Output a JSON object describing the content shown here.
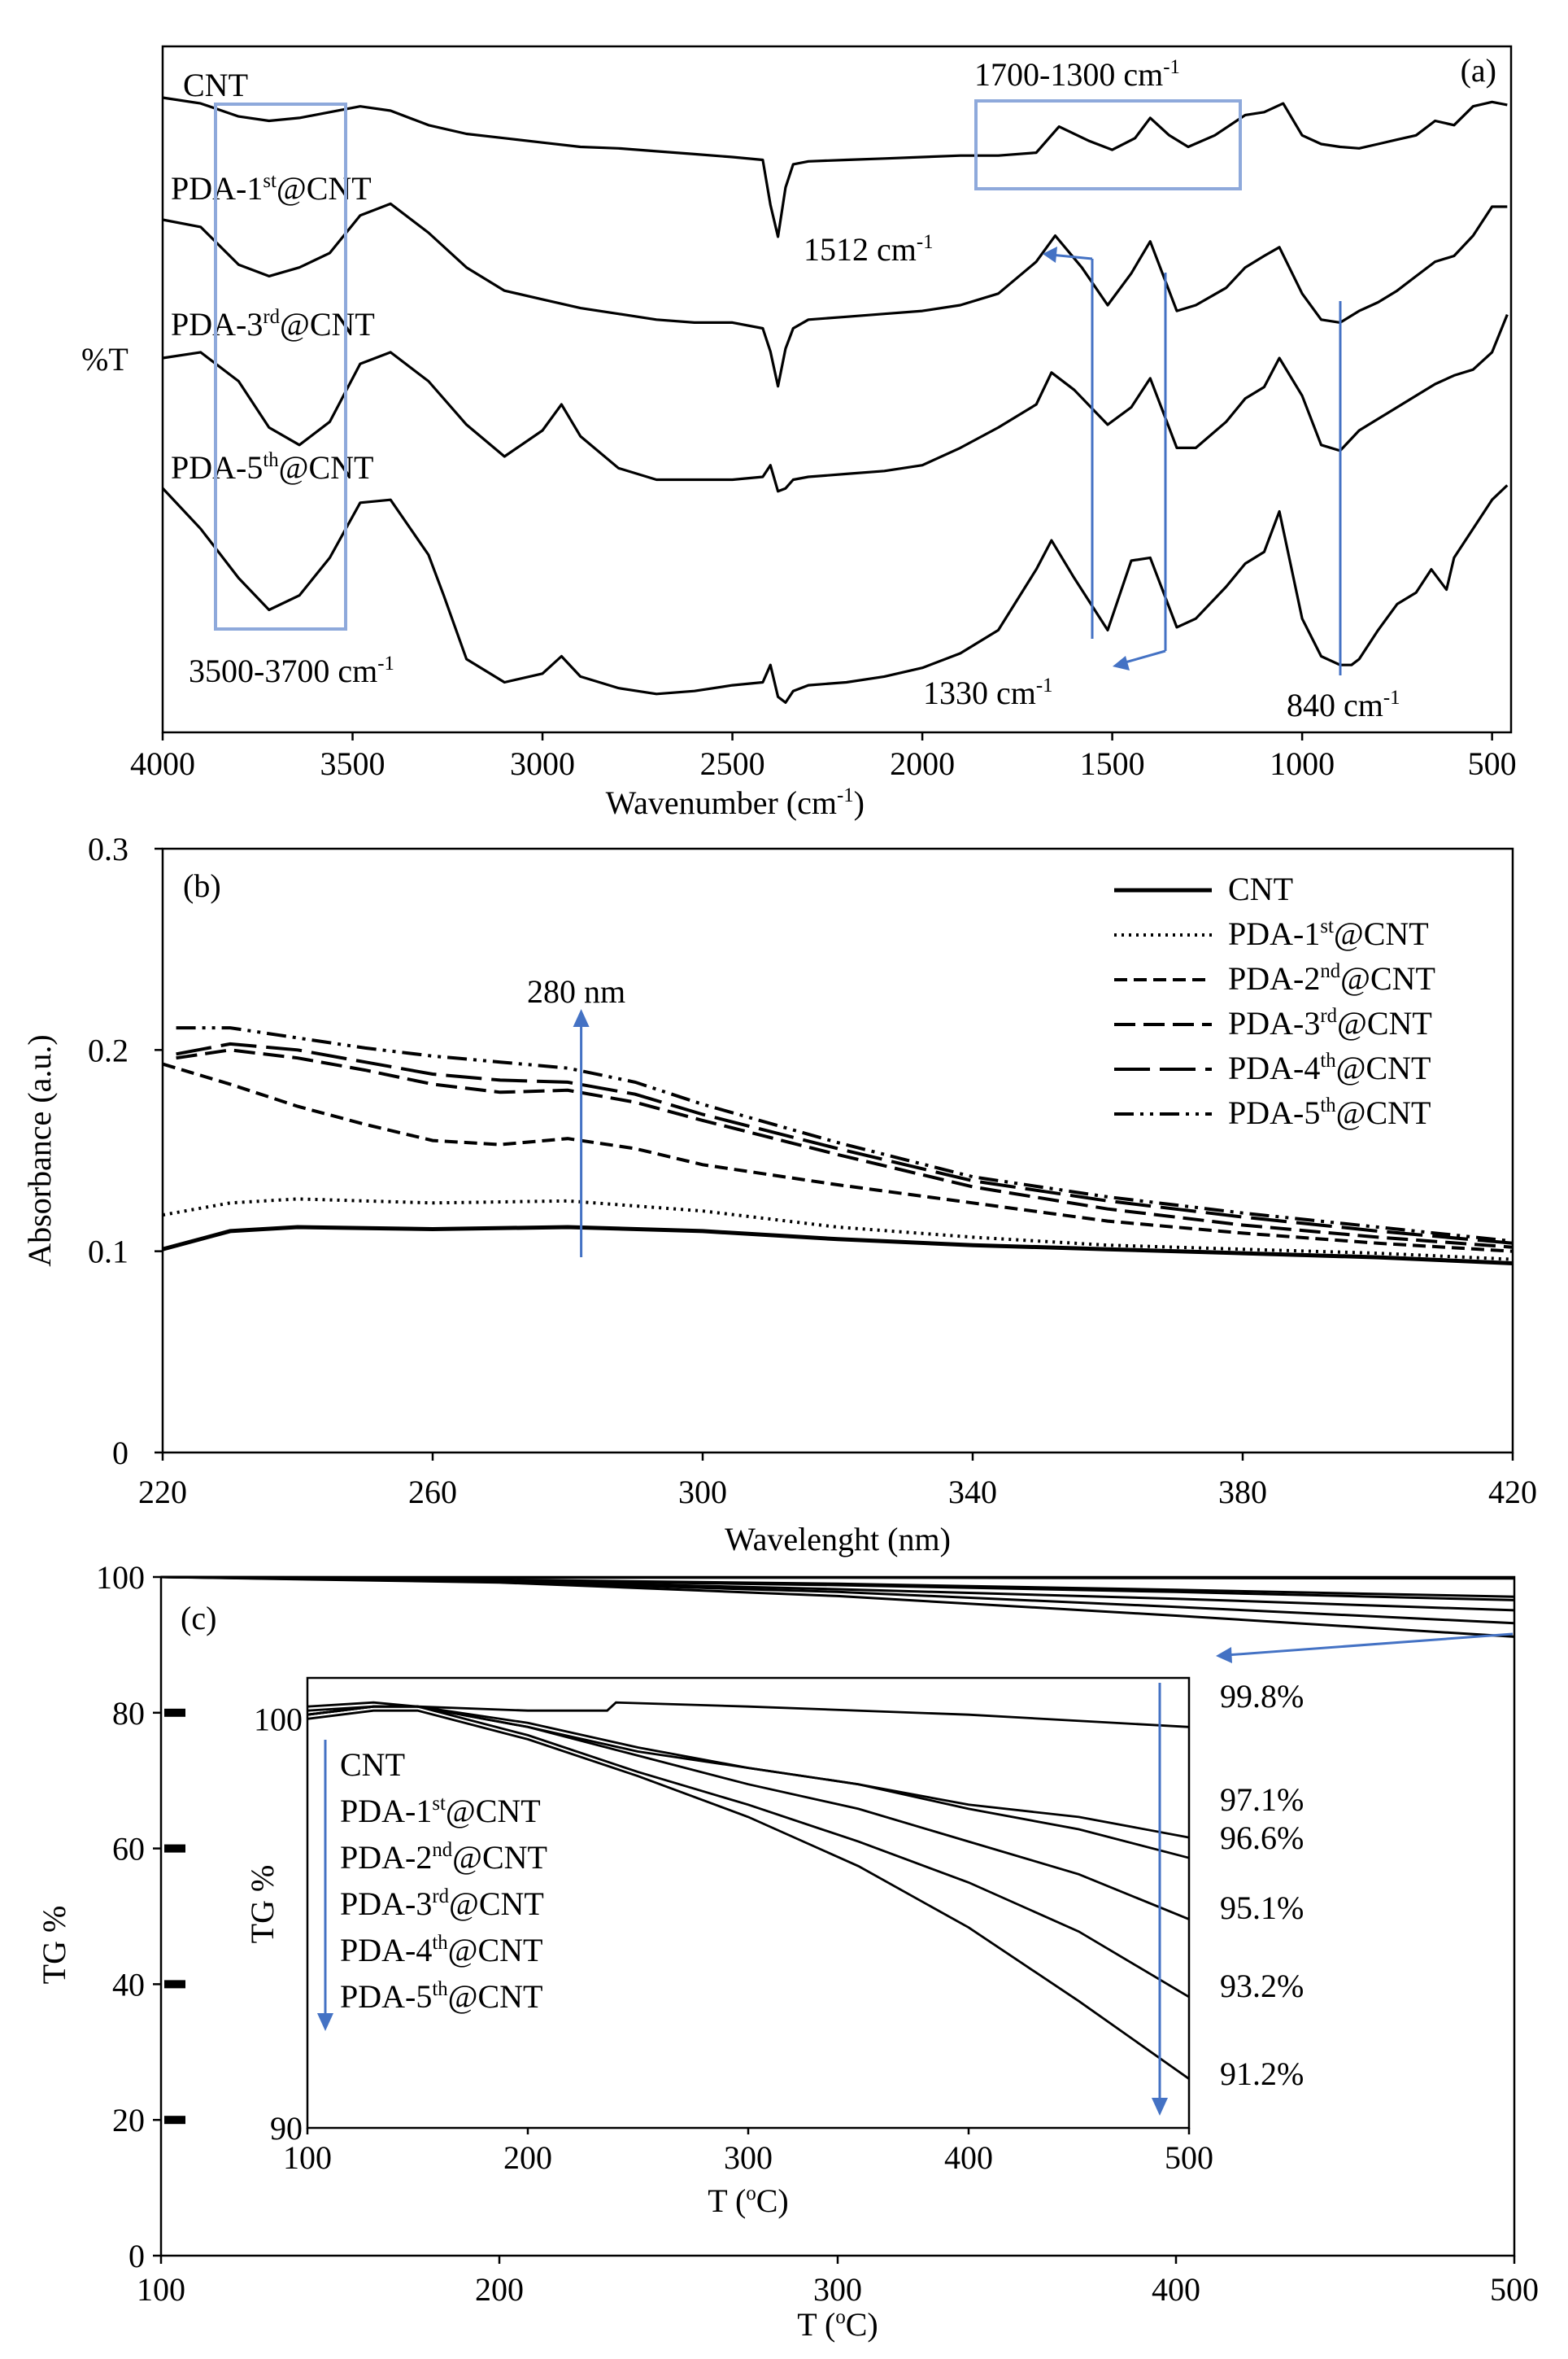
{
  "chart_data": [
    {
      "panel": "a",
      "type": "line",
      "title": "(a)",
      "xlabel": "Wavenumber (cm-1)",
      "ylabel": "%T",
      "xlim": [
        4000,
        450
      ],
      "x_reversed": true,
      "xticks": [
        4000,
        3500,
        3000,
        2500,
        2000,
        1500,
        1000,
        500
      ],
      "series": [
        {
          "name": "CNT",
          "label_base": "CNT",
          "label_sup": "",
          "label_rest": "",
          "x": [
            4000,
            3900,
            3800,
            3720,
            3640,
            3560,
            3480,
            3400,
            3300,
            3200,
            3100,
            3000,
            2900,
            2800,
            2700,
            2600,
            2500,
            2420,
            2400,
            2380,
            2360,
            2340,
            2300,
            2200,
            2100,
            2000,
            1900,
            1800,
            1700,
            1640,
            1560,
            1500,
            1440,
            1400,
            1350,
            1300,
            1230,
            1150,
            1100,
            1050,
            1000,
            950,
            900,
            850,
            800,
            750,
            700,
            650,
            600,
            550,
            500,
            460
          ],
          "y": [
            66,
            70,
            79,
            82,
            80,
            76,
            72,
            75,
            85,
            91,
            94,
            97,
            100,
            101,
            103,
            105,
            107,
            109,
            140,
            162,
            128,
            112,
            110,
            109,
            108,
            107,
            106,
            106,
            104,
            86,
            96,
            102,
            94,
            80,
            92,
            100,
            92,
            78,
            76,
            70,
            92,
            98,
            100,
            101,
            98,
            95,
            92,
            82,
            85,
            72,
            69,
            71
          ]
        },
        {
          "name": "PDA-1st@CNT",
          "label_base": "PDA-1",
          "label_sup": "st",
          "label_rest": "@CNT",
          "x": [
            4000,
            3900,
            3800,
            3720,
            3640,
            3560,
            3480,
            3400,
            3300,
            3200,
            3100,
            3000,
            2900,
            2800,
            2700,
            2600,
            2500,
            2420,
            2400,
            2380,
            2360,
            2340,
            2300,
            2200,
            2100,
            2000,
            1900,
            1800,
            1700,
            1650,
            1580,
            1512,
            1450,
            1400,
            1330,
            1280,
            1200,
            1150,
            1100,
            1060,
            1000,
            950,
            900,
            850,
            800,
            750,
            700,
            650,
            600,
            550,
            500,
            460
          ],
          "y": [
            147,
            152,
            178,
            186,
            180,
            170,
            144,
            136,
            156,
            180,
            196,
            202,
            208,
            212,
            216,
            218,
            218,
            222,
            238,
            262,
            236,
            222,
            216,
            214,
            212,
            210,
            206,
            198,
            176,
            158,
            180,
            206,
            184,
            162,
            210,
            206,
            194,
            180,
            172,
            166,
            198,
            216,
            218,
            210,
            204,
            196,
            186,
            176,
            172,
            158,
            138,
            138
          ]
        },
        {
          "name": "PDA-3rd@CNT",
          "label_base": "PDA-3",
          "label_sup": "rd",
          "label_rest": "@CNT",
          "x": [
            4000,
            3900,
            3800,
            3720,
            3640,
            3560,
            3480,
            3400,
            3300,
            3200,
            3100,
            3000,
            2950,
            2900,
            2800,
            2700,
            2600,
            2500,
            2420,
            2400,
            2380,
            2360,
            2340,
            2300,
            2200,
            2100,
            2000,
            1900,
            1800,
            1700,
            1660,
            1600,
            1512,
            1450,
            1400,
            1330,
            1280,
            1200,
            1150,
            1100,
            1060,
            1000,
            950,
            900,
            850,
            800,
            750,
            700,
            650,
            600,
            550,
            500,
            460
          ],
          "y": [
            236,
            232,
            252,
            284,
            296,
            280,
            240,
            232,
            252,
            282,
            304,
            286,
            268,
            290,
            312,
            320,
            320,
            320,
            318,
            310,
            328,
            326,
            320,
            318,
            316,
            314,
            310,
            298,
            284,
            268,
            246,
            258,
            282,
            270,
            250,
            298,
            298,
            280,
            264,
            256,
            236,
            262,
            296,
            300,
            286,
            278,
            270,
            262,
            254,
            248,
            244,
            232,
            206
          ]
        },
        {
          "name": "PDA-5th@CNT",
          "label_base": "PDA-5",
          "label_sup": "th",
          "label_rest": "@CNT",
          "x": [
            4000,
            3900,
            3800,
            3720,
            3640,
            3560,
            3480,
            3400,
            3300,
            3260,
            3200,
            3100,
            3000,
            2950,
            2900,
            2800,
            2700,
            2600,
            2500,
            2420,
            2400,
            2380,
            2360,
            2340,
            2300,
            2200,
            2100,
            2000,
            1900,
            1800,
            1700,
            1660,
            1600,
            1512,
            1450,
            1400,
            1330,
            1280,
            1200,
            1150,
            1100,
            1060,
            1000,
            950,
            900,
            870,
            850,
            800,
            750,
            700,
            660,
            620,
            600,
            550,
            500,
            460
          ],
          "y": [
            322,
            350,
            384,
            406,
            396,
            370,
            332,
            330,
            368,
            396,
            440,
            456,
            450,
            438,
            452,
            460,
            464,
            462,
            458,
            456,
            444,
            466,
            470,
            462,
            458,
            456,
            452,
            446,
            436,
            420,
            378,
            358,
            384,
            420,
            372,
            370,
            418,
            412,
            390,
            374,
            366,
            338,
            412,
            438,
            444,
            444,
            440,
            420,
            402,
            394,
            378,
            392,
            370,
            350,
            330,
            320
          ]
        }
      ]
    },
    {
      "panel": "b",
      "type": "line",
      "title": "(b)",
      "xlabel": "Wavelenght (nm)",
      "ylabel": "Absorbance (a.u.)",
      "xlim": [
        220,
        420
      ],
      "ylim": [
        0,
        0.3
      ],
      "xticks": [
        220,
        260,
        300,
        340,
        380,
        420
      ],
      "yticks": [
        0,
        0.1,
        0.2,
        0.3
      ],
      "series": [
        {
          "name": "CNT",
          "label_base": "CNT",
          "label_sup": "",
          "label_rest": "",
          "dash": "solid",
          "x": [
            220,
            230,
            240,
            260,
            280,
            300,
            320,
            340,
            360,
            380,
            400,
            420
          ],
          "y": [
            0.101,
            0.11,
            0.112,
            0.111,
            0.112,
            0.11,
            0.106,
            0.103,
            0.101,
            0.099,
            0.097,
            0.094
          ]
        },
        {
          "name": "PDA-1st@CNT",
          "label_base": "PDA-1",
          "label_sup": "st",
          "label_rest": "@CNT",
          "dash": "dot",
          "x": [
            220,
            230,
            240,
            260,
            280,
            300,
            320,
            340,
            360,
            380,
            400,
            420
          ],
          "y": [
            0.118,
            0.124,
            0.126,
            0.124,
            0.125,
            0.12,
            0.112,
            0.107,
            0.103,
            0.101,
            0.099,
            0.096
          ]
        },
        {
          "name": "PDA-2nd@CNT",
          "label_base": "PDA-2",
          "label_sup": "nd",
          "label_rest": "@CNT",
          "dash": "dash",
          "x": [
            220,
            230,
            240,
            250,
            260,
            270,
            280,
            290,
            300,
            320,
            340,
            360,
            380,
            400,
            420
          ],
          "y": [
            0.193,
            0.183,
            0.172,
            0.163,
            0.155,
            0.153,
            0.156,
            0.151,
            0.143,
            0.133,
            0.124,
            0.115,
            0.109,
            0.104,
            0.1
          ]
        },
        {
          "name": "PDA-3rd@CNT",
          "label_base": "PDA-3",
          "label_sup": "rd",
          "label_rest": "@CNT",
          "dash": "longdash",
          "x": [
            222,
            230,
            240,
            250,
            260,
            270,
            280,
            290,
            300,
            320,
            340,
            360,
            380,
            400,
            420
          ],
          "y": [
            0.196,
            0.2,
            0.196,
            0.19,
            0.183,
            0.179,
            0.18,
            0.174,
            0.165,
            0.148,
            0.132,
            0.121,
            0.113,
            0.107,
            0.102
          ]
        },
        {
          "name": "PDA-4th@CNT",
          "label_base": "PDA-4",
          "label_sup": "th",
          "label_rest": "@CNT",
          "dash": "xlongdash",
          "x": [
            222,
            230,
            240,
            250,
            260,
            270,
            280,
            290,
            300,
            320,
            340,
            360,
            380,
            400,
            420
          ],
          "y": [
            0.198,
            0.203,
            0.2,
            0.194,
            0.188,
            0.185,
            0.184,
            0.178,
            0.168,
            0.151,
            0.135,
            0.125,
            0.117,
            0.11,
            0.104
          ]
        },
        {
          "name": "PDA-5th@CNT",
          "label_base": "PDA-5",
          "label_sup": "th",
          "label_rest": "@CNT",
          "dash": "dashdot",
          "x": [
            222,
            230,
            240,
            250,
            260,
            270,
            280,
            290,
            300,
            320,
            340,
            360,
            380,
            400,
            420
          ],
          "y": [
            0.211,
            0.211,
            0.206,
            0.201,
            0.197,
            0.194,
            0.191,
            0.184,
            0.173,
            0.154,
            0.137,
            0.127,
            0.119,
            0.112,
            0.105
          ]
        }
      ]
    },
    {
      "panel": "c",
      "type": "line",
      "title": "(c)",
      "xlabel": "T (oC)",
      "ylabel": "TG %",
      "xlim": [
        100,
        500
      ],
      "ylim": [
        0,
        100
      ],
      "xticks": [
        100,
        200,
        300,
        400,
        500
      ],
      "yticks": [
        0,
        20,
        40,
        60,
        80,
        100
      ],
      "series": [
        {
          "name": "CNT",
          "x": [
            100,
            200,
            300,
            400,
            500
          ],
          "y": [
            100,
            99.9,
            99.9,
            99.85,
            99.8
          ]
        },
        {
          "name": "PDA-1st@CNT",
          "x": [
            100,
            200,
            300,
            400,
            500
          ],
          "y": [
            100,
            99.6,
            99.0,
            98.1,
            97.1
          ]
        },
        {
          "name": "PDA-2nd@CNT",
          "x": [
            100,
            200,
            300,
            400,
            500
          ],
          "y": [
            100,
            99.5,
            98.8,
            97.8,
            96.6
          ]
        },
        {
          "name": "PDA-3rd@CNT",
          "x": [
            100,
            200,
            300,
            400,
            500
          ],
          "y": [
            100,
            99.4,
            98.2,
            96.8,
            95.1
          ]
        },
        {
          "name": "PDA-4th@CNT",
          "x": [
            100,
            200,
            300,
            400,
            500
          ],
          "y": [
            100,
            99.3,
            97.8,
            95.6,
            93.2
          ]
        },
        {
          "name": "PDA-5th@CNT",
          "x": [
            100,
            200,
            300,
            400,
            500
          ],
          "y": [
            100,
            99.2,
            97.2,
            94.3,
            91.2
          ]
        }
      ]
    },
    {
      "panel": "c-inset",
      "type": "line",
      "xlabel": "T (oC)",
      "ylabel": "TG %",
      "xlim": [
        100,
        500
      ],
      "ylim": [
        90,
        101
      ],
      "xticks": [
        100,
        200,
        300,
        400,
        500
      ],
      "yticks": [
        90,
        100
      ],
      "series": [
        {
          "name": "CNT",
          "label_base": "CNT",
          "label_sup": "",
          "label_rest": "",
          "x": [
            100,
            130,
            150,
            200,
            236,
            240,
            300,
            400,
            500
          ],
          "y": [
            100.2,
            100.3,
            100.3,
            100.2,
            100.2,
            100.4,
            100.3,
            100.1,
            99.8
          ]
        },
        {
          "name": "PDA-1st@CNT",
          "label_base": "PDA-1",
          "label_sup": "st",
          "label_rest": "@CNT",
          "x": [
            100,
            130,
            150,
            200,
            250,
            300,
            350,
            400,
            450,
            500
          ],
          "y": [
            100.3,
            100.4,
            100.3,
            99.9,
            99.3,
            98.8,
            98.4,
            97.9,
            97.6,
            97.1
          ]
        },
        {
          "name": "PDA-2nd@CNT",
          "label_base": "PDA-2",
          "label_sup": "nd",
          "label_rest": "@CNT",
          "x": [
            100,
            130,
            150,
            200,
            250,
            300,
            350,
            400,
            450,
            500
          ],
          "y": [
            100.1,
            100.3,
            100.3,
            99.8,
            99.2,
            98.8,
            98.4,
            97.8,
            97.3,
            96.6
          ]
        },
        {
          "name": "PDA-3rd@CNT",
          "label_base": "PDA-3",
          "label_sup": "rd",
          "label_rest": "@CNT",
          "x": [
            100,
            130,
            150,
            200,
            250,
            300,
            350,
            400,
            450,
            500
          ],
          "y": [
            100.1,
            100.3,
            100.3,
            99.8,
            99.1,
            98.4,
            97.8,
            97.0,
            96.2,
            95.1
          ]
        },
        {
          "name": "PDA-4th@CNT",
          "label_base": "PDA-4",
          "label_sup": "th",
          "label_rest": "@CNT",
          "x": [
            100,
            130,
            150,
            200,
            250,
            300,
            350,
            400,
            450,
            500
          ],
          "y": [
            100.1,
            100.3,
            100.3,
            99.6,
            98.7,
            97.9,
            97.0,
            96.0,
            94.8,
            93.2
          ]
        },
        {
          "name": "PDA-5th@CNT",
          "label_base": "PDA-5",
          "label_sup": "th",
          "label_rest": "@CNT",
          "x": [
            100,
            130,
            150,
            200,
            250,
            300,
            350,
            400,
            450,
            500
          ],
          "y": [
            100.0,
            100.2,
            100.2,
            99.5,
            98.6,
            97.6,
            96.4,
            94.9,
            93.1,
            91.2
          ]
        }
      ],
      "end_labels": [
        "99.8%",
        "97.1%",
        "96.6%",
        "95.1%",
        "93.2%",
        "91.2%"
      ]
    }
  ],
  "annotations_a": {
    "band_high": "3500-3700 cm",
    "band_mid": "1700-1300 cm",
    "peak_1512": "1512 cm",
    "peak_1330": "1330 cm",
    "peak_840": "840 cm",
    "unit_sup": "-1"
  },
  "annotations_b": {
    "peak_280": "280 nm"
  }
}
